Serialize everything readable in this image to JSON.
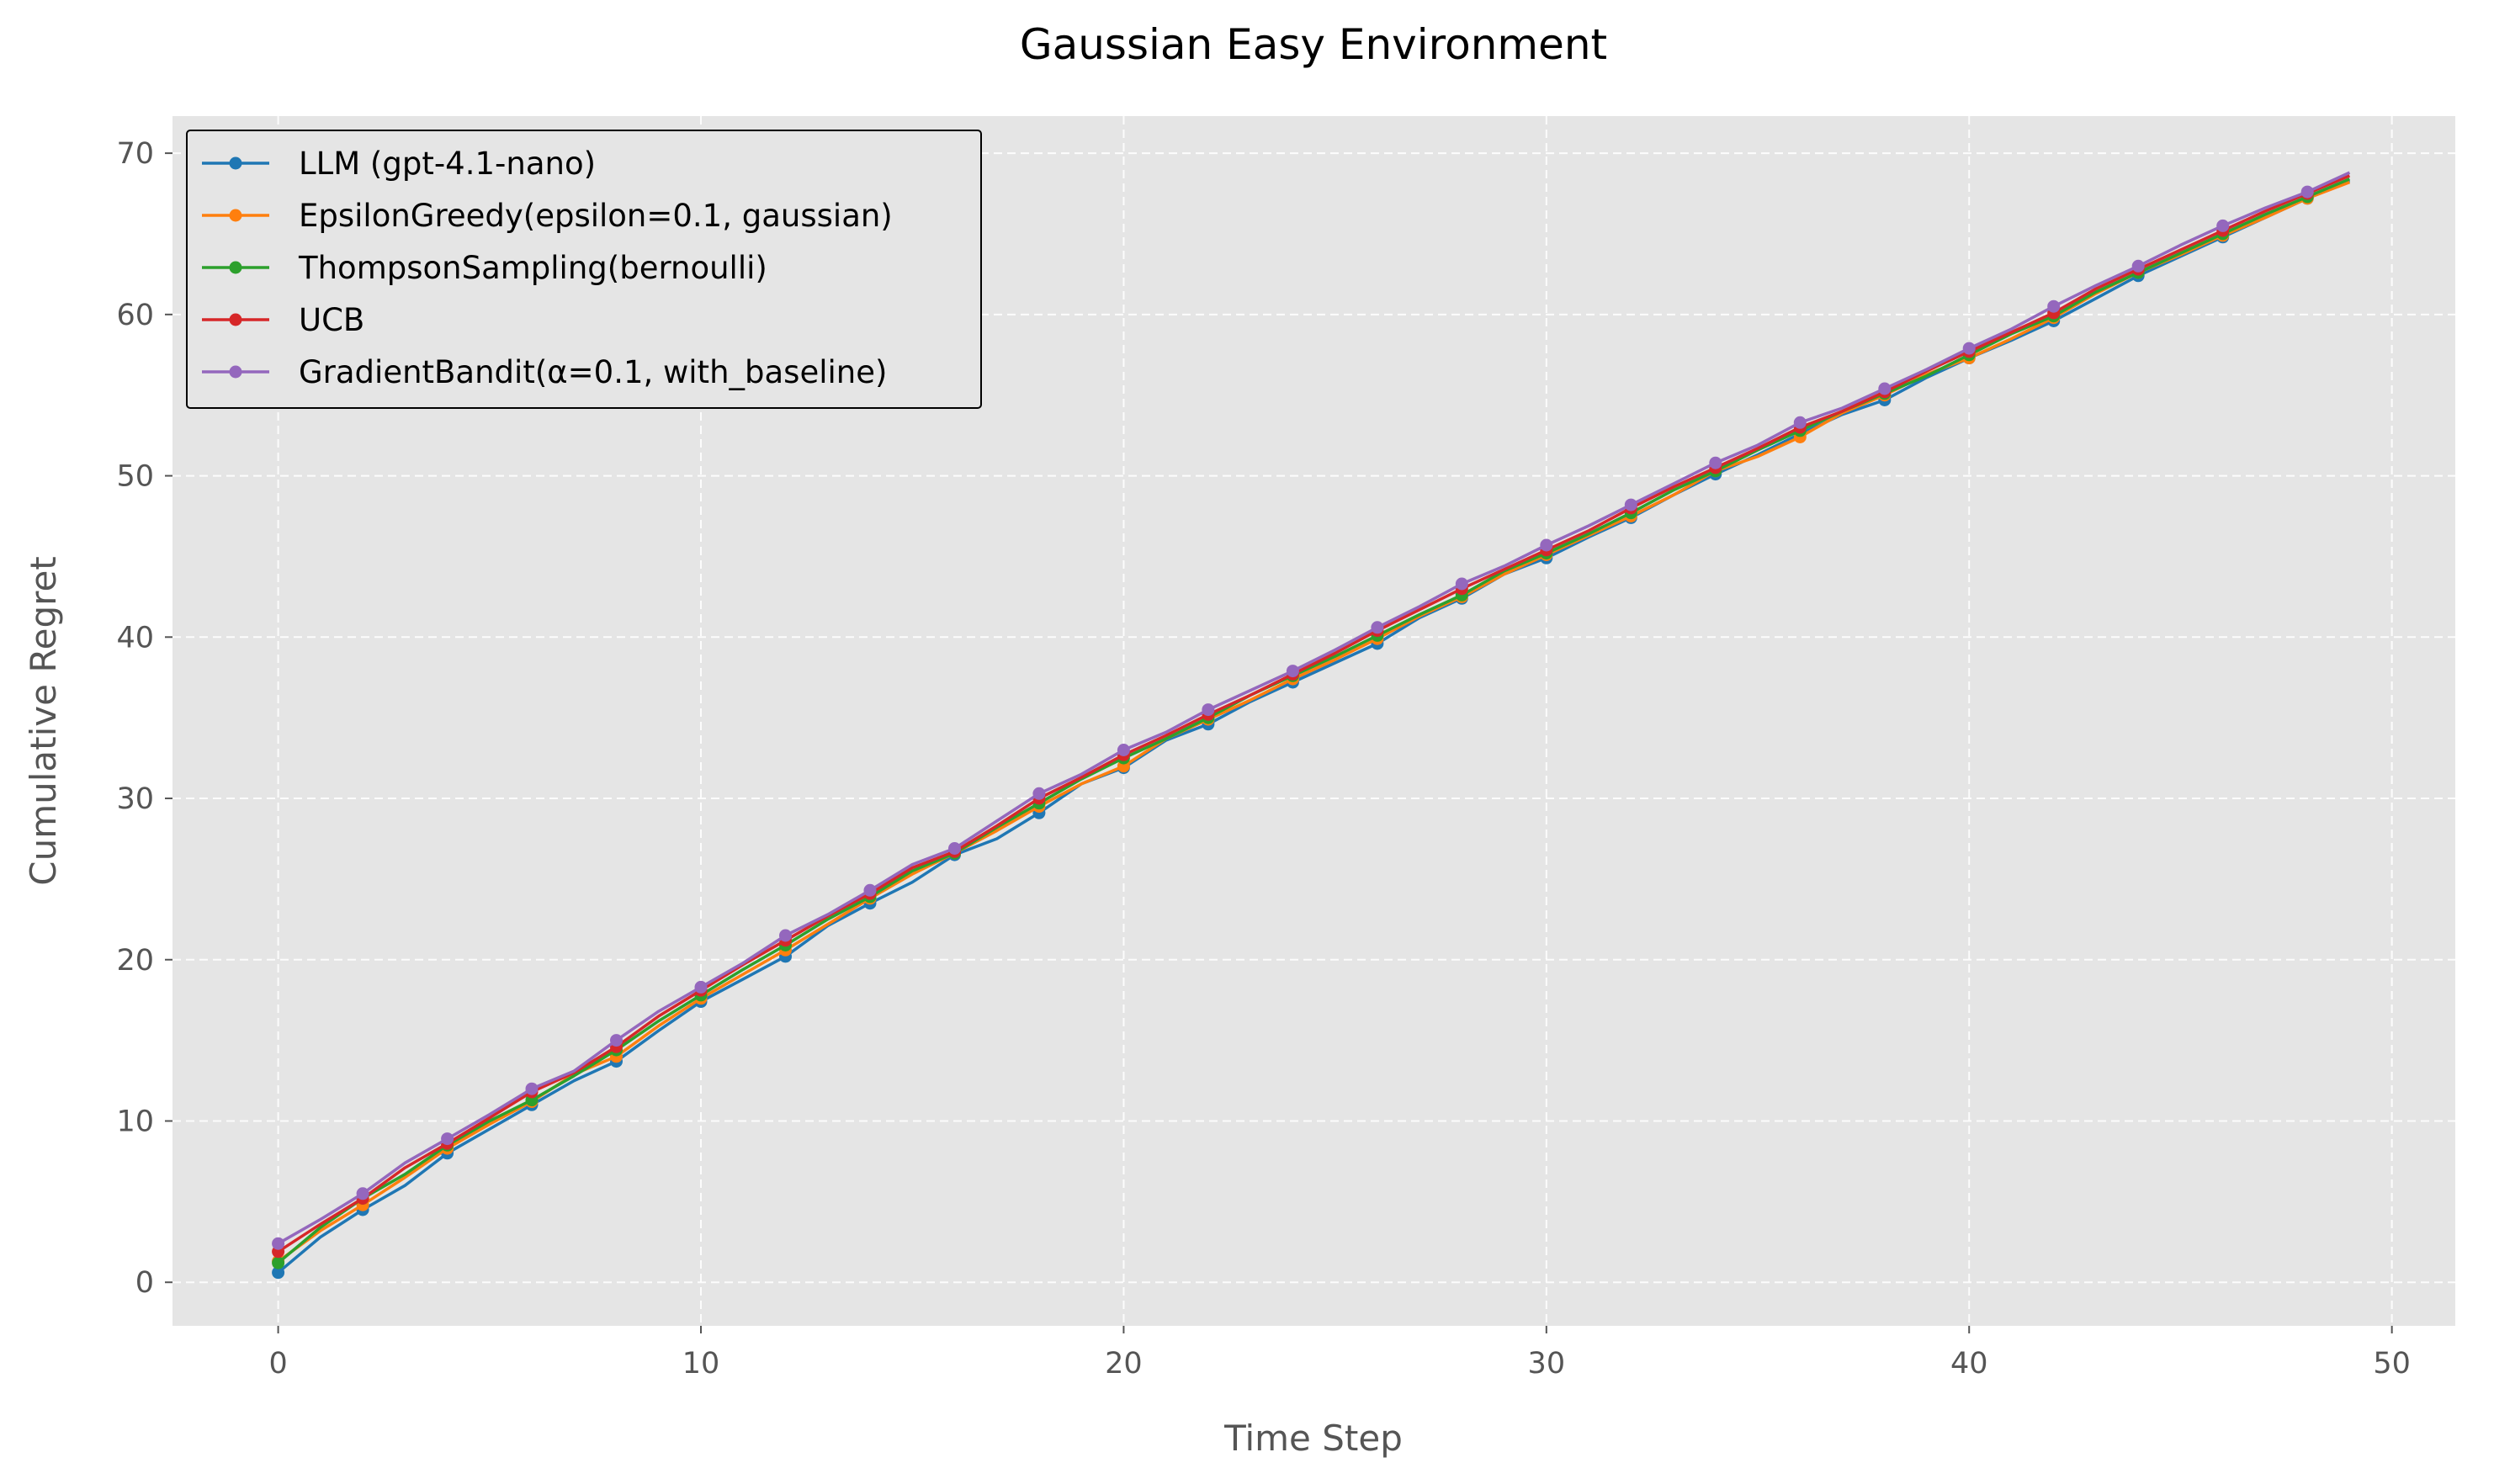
{
  "chart_data": {
    "type": "line",
    "title": "Gaussian Easy Environment",
    "xlabel": "Time Step",
    "ylabel": "Cumulative Regret",
    "xlim": [
      -2.5,
      51.5
    ],
    "ylim": [
      -2.7,
      72.3
    ],
    "xticks": [
      0,
      10,
      20,
      30,
      40,
      50
    ],
    "yticks": [
      0,
      10,
      20,
      30,
      40,
      50,
      60,
      70
    ],
    "grid": true,
    "legend_position": "top-left",
    "x": [
      0,
      1,
      2,
      3,
      4,
      5,
      6,
      7,
      8,
      9,
      10,
      11,
      12,
      13,
      14,
      15,
      16,
      17,
      18,
      19,
      20,
      21,
      22,
      23,
      24,
      25,
      26,
      27,
      28,
      29,
      30,
      31,
      32,
      33,
      34,
      35,
      36,
      37,
      38,
      39,
      40,
      41,
      42,
      43,
      44,
      45,
      46,
      47,
      48,
      49
    ],
    "series": [
      {
        "name": "LLM (gpt-4.1-nano)",
        "color": "#1f77b4",
        "values": [
          0.6,
          2.8,
          4.5,
          6.0,
          8.0,
          9.5,
          11.0,
          12.5,
          13.7,
          15.6,
          17.4,
          18.8,
          20.2,
          22.1,
          23.5,
          24.8,
          26.5,
          27.5,
          29.1,
          30.9,
          31.9,
          33.6,
          34.6,
          36.0,
          37.2,
          38.4,
          39.6,
          41.2,
          42.4,
          43.9,
          44.9,
          46.2,
          47.4,
          48.8,
          50.1,
          51.3,
          52.6,
          53.8,
          54.7,
          56.1,
          57.3,
          58.4,
          59.6,
          61.0,
          62.4,
          63.6,
          64.8,
          66.0,
          67.2,
          68.3
        ]
      },
      {
        "name": "EpsilonGreedy(epsilon=0.1, gaussian)",
        "color": "#ff7f0e",
        "values": [
          1.3,
          3.2,
          4.8,
          6.5,
          8.3,
          9.8,
          11.2,
          12.9,
          14.0,
          15.9,
          17.6,
          19.1,
          20.6,
          22.2,
          23.8,
          25.3,
          26.6,
          28.0,
          29.5,
          30.9,
          32.0,
          33.7,
          34.9,
          36.1,
          37.4,
          38.6,
          39.9,
          41.3,
          42.5,
          43.9,
          45.1,
          46.3,
          47.5,
          48.8,
          50.3,
          51.2,
          52.4,
          53.9,
          55.0,
          56.3,
          57.3,
          58.5,
          59.8,
          61.3,
          62.6,
          63.7,
          64.9,
          66.0,
          67.2,
          68.2
        ]
      },
      {
        "name": "ThompsonSampling(bernoulli)",
        "color": "#2ca02c",
        "values": [
          1.2,
          3.4,
          5.2,
          6.7,
          8.5,
          10.0,
          11.3,
          12.8,
          14.4,
          16.2,
          17.8,
          19.4,
          20.9,
          22.5,
          23.9,
          25.5,
          26.6,
          28.2,
          29.7,
          31.2,
          32.5,
          33.7,
          35.0,
          36.4,
          37.6,
          38.8,
          40.1,
          41.4,
          42.6,
          44.1,
          45.2,
          46.4,
          47.7,
          49.1,
          50.3,
          51.6,
          52.8,
          54.0,
          55.1,
          56.2,
          57.5,
          58.8,
          59.9,
          61.4,
          62.6,
          63.8,
          65.0,
          66.2,
          67.3,
          68.4
        ]
      },
      {
        "name": "UCB",
        "color": "#d62728",
        "values": [
          1.9,
          3.6,
          5.2,
          7.1,
          8.6,
          10.2,
          11.8,
          13.0,
          14.6,
          16.5,
          18.1,
          19.7,
          21.2,
          22.7,
          24.1,
          25.7,
          26.7,
          28.3,
          30.0,
          31.3,
          32.7,
          33.9,
          35.2,
          36.4,
          37.7,
          39.0,
          40.4,
          41.7,
          43.0,
          44.2,
          45.4,
          46.6,
          48.0,
          49.3,
          50.5,
          51.7,
          53.0,
          54.0,
          55.2,
          56.5,
          57.7,
          58.9,
          60.1,
          61.6,
          62.8,
          64.0,
          65.2,
          66.4,
          67.5,
          68.6
        ]
      },
      {
        "name": "GradientBandit(α=0.1, with_baseline)",
        "color": "#9467bd",
        "values": [
          2.4,
          3.9,
          5.5,
          7.4,
          8.9,
          10.4,
          12.0,
          13.1,
          15.0,
          16.8,
          18.3,
          19.8,
          21.5,
          22.8,
          24.3,
          25.9,
          26.9,
          28.6,
          30.3,
          31.5,
          33.0,
          34.1,
          35.5,
          36.7,
          37.9,
          39.2,
          40.6,
          41.9,
          43.3,
          44.4,
          45.7,
          46.9,
          48.2,
          49.5,
          50.8,
          51.9,
          53.3,
          54.2,
          55.4,
          56.6,
          57.9,
          59.1,
          60.5,
          61.8,
          63.0,
          64.3,
          65.5,
          66.6,
          67.6,
          68.8
        ]
      }
    ]
  }
}
